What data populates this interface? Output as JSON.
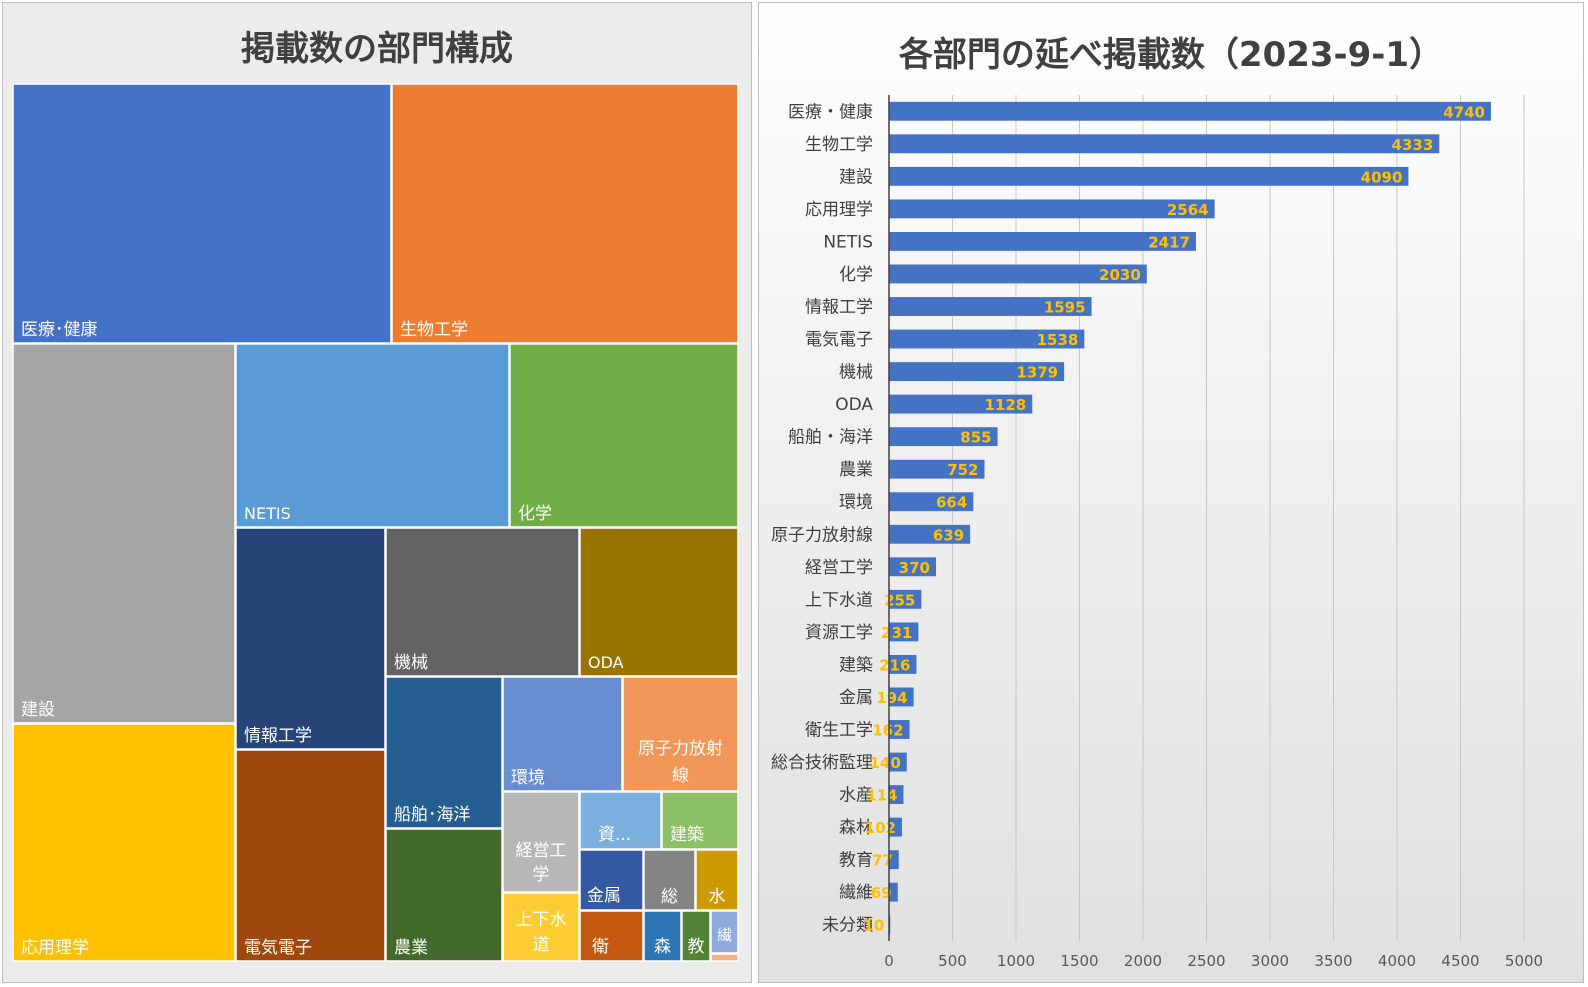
{
  "treemap": {
    "title": "掲載数の部門構成",
    "tiles": [
      {
        "key": "iryo",
        "label": "医療･健康",
        "color": "#4472C4"
      },
      {
        "key": "seibutsu",
        "label": "生物工学",
        "color": "#ED7D31"
      },
      {
        "key": "kensetsu",
        "label": "建設",
        "color": "#A5A5A5"
      },
      {
        "key": "oyo",
        "label": "応用理学",
        "color": "#FFC000"
      },
      {
        "key": "netis",
        "label": "NETIS",
        "color": "#5B9BD5"
      },
      {
        "key": "kagaku",
        "label": "化学",
        "color": "#70AD47"
      },
      {
        "key": "joho",
        "label": "情報工学",
        "color": "#264478"
      },
      {
        "key": "denki",
        "label": "電気電子",
        "color": "#9E480E"
      },
      {
        "key": "kikai",
        "label": "機械",
        "color": "#636363"
      },
      {
        "key": "oda",
        "label": "ODA",
        "color": "#997300"
      },
      {
        "key": "senpaku",
        "label": "船舶･海洋",
        "color": "#255E91"
      },
      {
        "key": "nogyo",
        "label": "農業",
        "color": "#43682B"
      },
      {
        "key": "kankyo",
        "label": "環境",
        "color": "#698ED0"
      },
      {
        "key": "genshi",
        "label": "原子力放射線",
        "color": "#F1975A"
      },
      {
        "key": "keiei",
        "label": "経営工学",
        "color": "#B7B7B7"
      },
      {
        "key": "jogesui",
        "label": "上下水道",
        "color": "#FFCD33"
      },
      {
        "key": "shigen",
        "label": "資...",
        "color": "#7CAFDD"
      },
      {
        "key": "kenchiku",
        "label": "建築",
        "color": "#8CC168"
      },
      {
        "key": "kinzoku",
        "label": "金属",
        "color": "#335AA1"
      },
      {
        "key": "sogo",
        "label": "総",
        "color": "#848484"
      },
      {
        "key": "suisan",
        "label": "水",
        "color": "#CC9A00"
      },
      {
        "key": "eisei",
        "label": "衛",
        "color": "#C65911"
      },
      {
        "key": "shinrin",
        "label": "森",
        "color": "#2E75B6"
      },
      {
        "key": "kyoiku",
        "label": "教",
        "color": "#548235"
      },
      {
        "key": "seni",
        "label": "繊",
        "color": "#8FAADC"
      },
      {
        "key": "mibunrui",
        "label": "",
        "color": "#F4B183"
      }
    ]
  },
  "chart_data": {
    "type": "bar",
    "orientation": "horizontal",
    "title": "各部門の延べ掲載数（2023-9-1）",
    "categories": [
      "医療・健康",
      "生物工学",
      "建設",
      "応用理学",
      "NETIS",
      "化学",
      "情報工学",
      "電気電子",
      "機械",
      "ODA",
      "船舶・海洋",
      "農業",
      "環境",
      "原子力放射線",
      "経営工学",
      "上下水道",
      "資源工学",
      "建築",
      "金属",
      "衛生工学",
      "総合技術監理",
      "水産",
      "森林",
      "教育",
      "繊維",
      "未分類"
    ],
    "values": [
      4740,
      4333,
      4090,
      2564,
      2417,
      2030,
      1595,
      1538,
      1379,
      1128,
      855,
      752,
      664,
      639,
      370,
      255,
      231,
      216,
      194,
      162,
      140,
      114,
      102,
      77,
      69,
      10
    ],
    "xlim": [
      0,
      5000
    ],
    "xticks": [
      0,
      500,
      1000,
      1500,
      2000,
      2500,
      3000,
      3500,
      4000,
      4500,
      5000
    ],
    "bar_color": "#4472C4",
    "label_color": "#FFC000",
    "grid": true,
    "legend": "none"
  }
}
